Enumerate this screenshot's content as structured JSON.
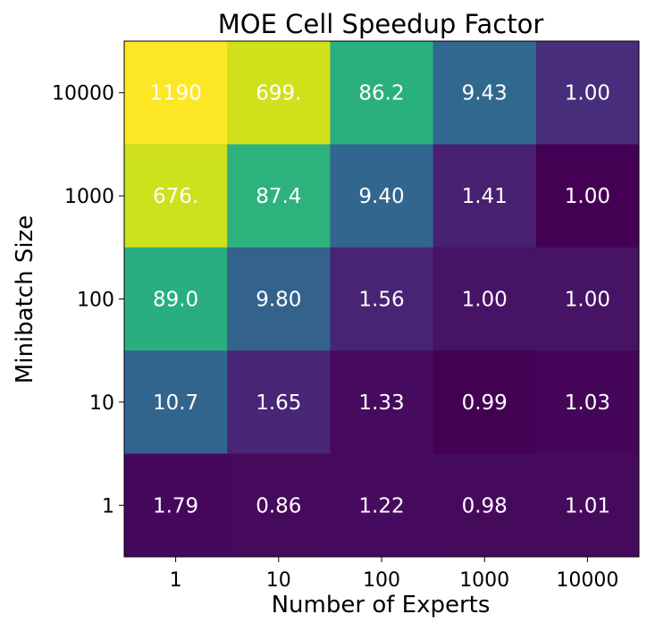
{
  "chart_data": {
    "type": "heatmap",
    "title": "MOE Cell Speedup Factor",
    "xlabel": "Number of Experts",
    "ylabel": "Minibatch Size",
    "x_categories": [
      "1",
      "10",
      "100",
      "1000",
      "10000"
    ],
    "y_categories": [
      "10000",
      "1000",
      "100",
      "10",
      "1"
    ],
    "values": [
      [
        1190,
        699,
        86.2,
        9.43,
        1.0
      ],
      [
        676,
        87.4,
        9.4,
        1.41,
        1.0
      ],
      [
        89.0,
        9.8,
        1.56,
        1.0,
        1.0
      ],
      [
        10.7,
        1.65,
        1.33,
        0.99,
        1.03
      ],
      [
        1.79,
        0.86,
        1.22,
        0.98,
        1.01
      ]
    ],
    "labels": [
      [
        "1190",
        "699.",
        "86.2",
        "9.43",
        "1.00"
      ],
      [
        "676.",
        "87.4",
        "9.40",
        "1.41",
        "1.00"
      ],
      [
        "89.0",
        "9.80",
        "1.56",
        "1.00",
        "1.00"
      ],
      [
        "10.7",
        "1.65",
        "1.33",
        "0.99",
        "1.03"
      ],
      [
        "1.79",
        "0.86",
        "1.22",
        "0.98",
        "1.01"
      ]
    ],
    "colors": [
      [
        "#fde725",
        "#d0e11c",
        "#2ab07f",
        "#31688e",
        "#472d7b"
      ],
      [
        "#cde11d",
        "#2db27d",
        "#31668e",
        "#482173",
        "#440154"
      ],
      [
        "#29af7f",
        "#33638d",
        "#482475",
        "#471365",
        "#471365"
      ],
      [
        "#32658e",
        "#482576",
        "#460b5e",
        "#440154",
        "#450559"
      ],
      [
        "#46085c",
        "#460a5d",
        "#460b5e",
        "#460a5d",
        "#460a5d"
      ]
    ],
    "colormap": "viridis",
    "grid": false,
    "legend": "none"
  }
}
